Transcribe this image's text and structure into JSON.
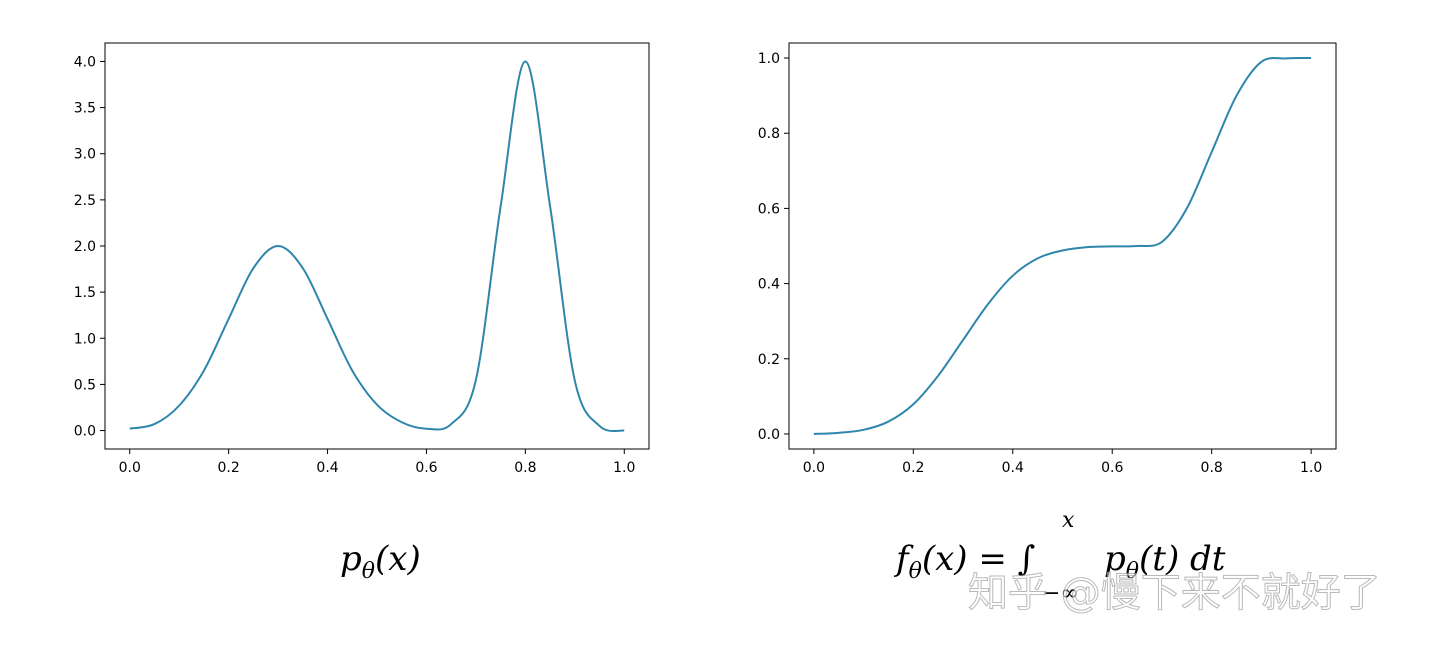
{
  "chart_data": [
    {
      "type": "line",
      "title": "",
      "xlabel": "",
      "ylabel": "",
      "caption": {
        "base": "p",
        "sub": "θ",
        "rest": "(x)"
      },
      "xlim": [
        -0.05,
        1.05
      ],
      "ylim": [
        -0.2,
        4.2
      ],
      "xticks": [
        "0.0",
        "0.2",
        "0.4",
        "0.6",
        "0.8",
        "1.0"
      ],
      "yticks": [
        "0.0",
        "0.5",
        "1.0",
        "1.5",
        "2.0",
        "2.5",
        "3.0",
        "3.5",
        "4.0"
      ],
      "grid": false,
      "color": "#2e86ab",
      "x": [
        0.0,
        0.05,
        0.1,
        0.15,
        0.2,
        0.25,
        0.3,
        0.35,
        0.4,
        0.45,
        0.5,
        0.55,
        0.6,
        0.65,
        0.7,
        0.75,
        0.8,
        0.85,
        0.9,
        0.95,
        1.0
      ],
      "y": [
        0.02,
        0.07,
        0.27,
        0.65,
        1.21,
        1.76,
        2.0,
        1.76,
        1.21,
        0.65,
        0.28,
        0.09,
        0.02,
        0.07,
        0.55,
        2.43,
        4.0,
        2.43,
        0.54,
        0.05,
        0.0
      ]
    },
    {
      "type": "line",
      "title": "",
      "xlabel": "",
      "ylabel": "",
      "caption": {
        "base": "f",
        "sub": "θ",
        "rest": "(x) = ∫",
        "upper": "x",
        "lower": "−∞",
        "integrand": "p",
        "integrand_sub": "θ",
        "tail": "(t) dt"
      },
      "xlim": [
        -0.05,
        1.05
      ],
      "ylim": [
        -0.04,
        1.04
      ],
      "xticks": [
        "0.0",
        "0.2",
        "0.4",
        "0.6",
        "0.8",
        "1.0"
      ],
      "yticks": [
        "0.0",
        "0.2",
        "0.4",
        "0.6",
        "0.8",
        "1.0"
      ],
      "grid": false,
      "color": "#2e86ab",
      "x": [
        0.0,
        0.05,
        0.1,
        0.15,
        0.2,
        0.25,
        0.3,
        0.35,
        0.4,
        0.45,
        0.5,
        0.55,
        0.6,
        0.65,
        0.7,
        0.75,
        0.8,
        0.85,
        0.9,
        0.95,
        1.0
      ],
      "y": [
        0.0,
        0.003,
        0.011,
        0.033,
        0.079,
        0.155,
        0.25,
        0.345,
        0.421,
        0.467,
        0.488,
        0.497,
        0.499,
        0.5,
        0.511,
        0.6,
        0.75,
        0.9,
        0.99,
        0.999,
        1.0
      ]
    }
  ],
  "watermark": "知乎 @慢下来不就好了"
}
